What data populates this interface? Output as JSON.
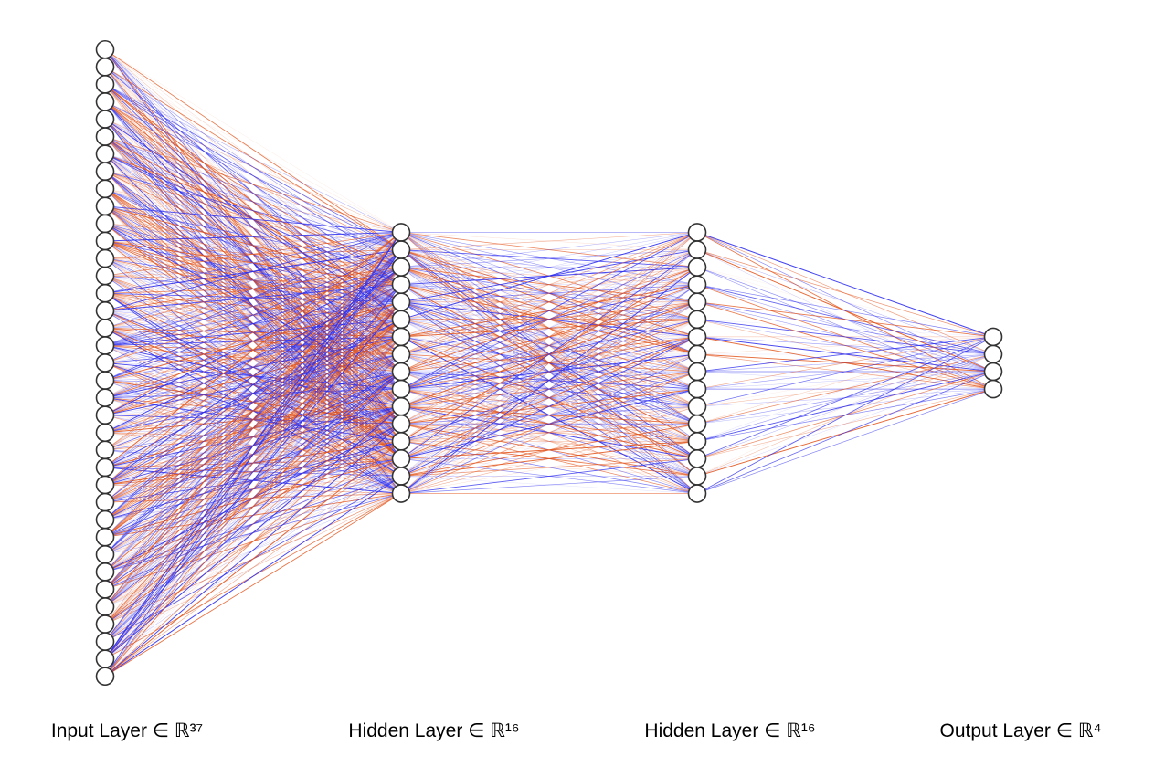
{
  "diagram": {
    "type": "neural-network",
    "colors": {
      "positive_weight": "#e2531a",
      "negative_weight": "#2b2bee",
      "node_fill": "#ffffff",
      "node_stroke": "#333333",
      "background": "#ffffff"
    },
    "layers": [
      {
        "label": "Input Layer ∈ ℝ³⁷",
        "size": 37
      },
      {
        "label": "Hidden Layer ∈ ℝ¹⁶",
        "size": 16
      },
      {
        "label": "Hidden Layer ∈ ℝ¹⁶",
        "size": 16
      },
      {
        "label": "Output Layer ∈ ℝ⁴",
        "size": 4
      }
    ]
  }
}
